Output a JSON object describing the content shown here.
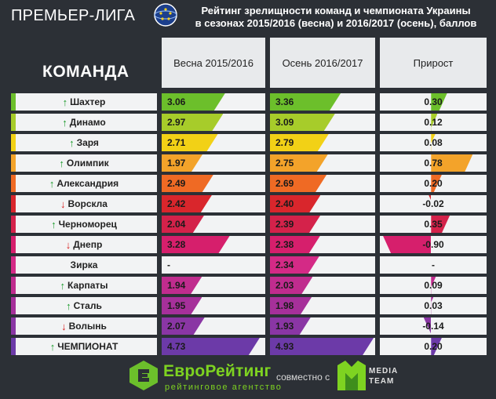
{
  "header": {
    "league": "ПРЕМЬЕР-ЛИГА",
    "title_line1": "Рейтинг зрелищности команд и  чемпионата Украины",
    "title_line2": "в сезонах 2015/2016 (весна) и 2016/2017 (осень), баллов"
  },
  "columns": {
    "team": "КОМАНДА",
    "spring": "Весна 2015/2016",
    "autumn": "Осень 2016/2017",
    "delta": "Прирост"
  },
  "chart_data": {
    "type": "bar",
    "categories": [
      "Шахтер",
      "Динамо",
      "Заря",
      "Олимпик",
      "Александрия",
      "Ворскла",
      "Черноморец",
      "Днепр",
      "Зирка",
      "Карпаты",
      "Сталь",
      "Волынь",
      "ЧЕМПИОНАТ"
    ],
    "series": [
      {
        "name": "Весна 2015/2016",
        "values": [
          3.06,
          2.97,
          2.71,
          1.97,
          2.49,
          2.42,
          2.04,
          3.28,
          null,
          1.94,
          1.95,
          2.07,
          4.73
        ]
      },
      {
        "name": "Осень 2016/2017",
        "values": [
          3.36,
          3.09,
          2.79,
          2.75,
          2.69,
          2.4,
          2.39,
          2.38,
          2.34,
          2.03,
          1.98,
          1.93,
          4.93
        ]
      },
      {
        "name": "Прирост",
        "values": [
          0.3,
          0.12,
          0.08,
          0.78,
          0.2,
          -0.02,
          0.35,
          -0.9,
          null,
          0.09,
          0.03,
          -0.14,
          0.2
        ]
      }
    ]
  },
  "rows": [
    {
      "team": "Шахтер",
      "trend": "up",
      "spring": "3.06",
      "autumn": "3.36",
      "delta": "0.30",
      "color": "#6cbf2b"
    },
    {
      "team": "Динамо",
      "trend": "up",
      "spring": "2.97",
      "autumn": "3.09",
      "delta": "0.12",
      "color": "#a7cc2a"
    },
    {
      "team": "Заря",
      "trend": "up",
      "spring": "2.71",
      "autumn": "2.79",
      "delta": "0.08",
      "color": "#f2d116"
    },
    {
      "team": "Олимпик",
      "trend": "up",
      "spring": "1.97",
      "autumn": "2.75",
      "delta": "0.78",
      "color": "#f3a32a"
    },
    {
      "team": "Александрия",
      "trend": "up",
      "spring": "2.49",
      "autumn": "2.69",
      "delta": "0.20",
      "color": "#ef6a24"
    },
    {
      "team": "Ворскла",
      "trend": "down",
      "spring": "2.42",
      "autumn": "2.40",
      "delta": "-0.02",
      "color": "#d9262c"
    },
    {
      "team": "Черноморец",
      "trend": "up",
      "spring": "2.04",
      "autumn": "2.39",
      "delta": "0.35",
      "color": "#d4224a"
    },
    {
      "team": "Днепр",
      "trend": "down",
      "spring": "3.28",
      "autumn": "2.38",
      "delta": "-0.90",
      "color": "#d61f6c"
    },
    {
      "team": "Зирка",
      "trend": "none",
      "spring": "-",
      "autumn": "2.34",
      "delta": "-",
      "color": "#d42a86"
    },
    {
      "team": "Карпаты",
      "trend": "up",
      "spring": "1.94",
      "autumn": "2.03",
      "delta": "0.09",
      "color": "#c02c8e"
    },
    {
      "team": "Сталь",
      "trend": "up",
      "spring": "1.95",
      "autumn": "1.98",
      "delta": "0.03",
      "color": "#a6309a"
    },
    {
      "team": "Волынь",
      "trend": "down",
      "spring": "2.07",
      "autumn": "1.93",
      "delta": "-0.14",
      "color": "#8a36a4"
    },
    {
      "team": "ЧЕМПИОНАТ",
      "trend": "up",
      "spring": "4.73",
      "autumn": "4.93",
      "delta": "0.20",
      "color": "#6c3aa8"
    }
  ],
  "footer": {
    "brand": "ЕвроРейтинг",
    "brand_sub": "рейтинговое агентство",
    "together": "совместно с",
    "partner_line1": "MEDIA",
    "partner_line2": "TEAM"
  }
}
